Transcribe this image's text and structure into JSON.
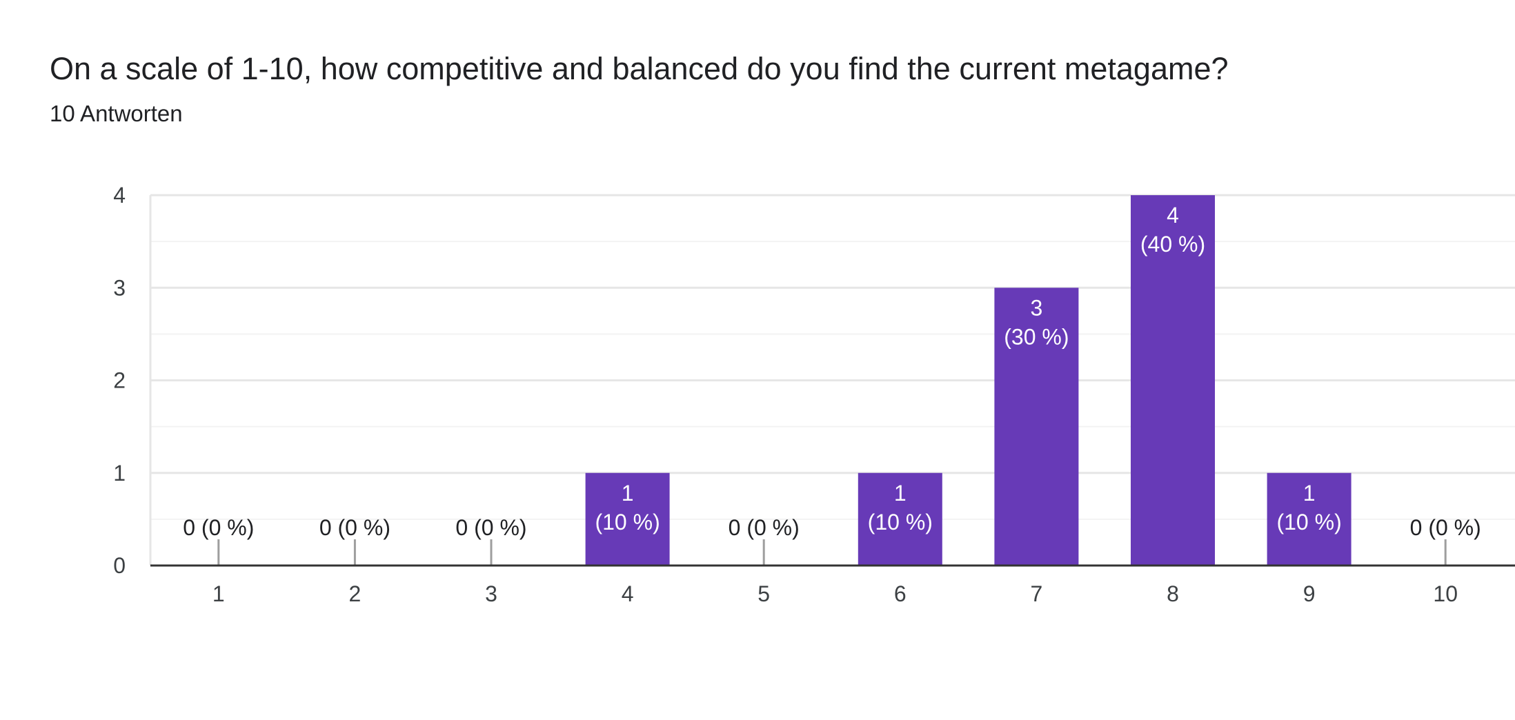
{
  "chart_data": {
    "type": "bar",
    "title": "On a scale of 1-10, how competitive and balanced do you find the current metagame?",
    "subtitle": "10 Antworten",
    "categories": [
      "1",
      "2",
      "3",
      "4",
      "5",
      "6",
      "7",
      "8",
      "9",
      "10"
    ],
    "values": [
      0,
      0,
      0,
      1,
      0,
      1,
      3,
      4,
      1,
      0
    ],
    "data_labels": [
      "0 (0 %)",
      "0 (0 %)",
      "0 (0 %)",
      "1\n(10 %)",
      "0 (0 %)",
      "1\n(10 %)",
      "3\n(30 %)",
      "4\n(40 %)",
      "1\n(10 %)",
      "0 (0 %)"
    ],
    "y_ticks": [
      0,
      1,
      2,
      3,
      4
    ],
    "ylim": [
      0,
      4
    ],
    "xlabel": "",
    "ylabel": "",
    "grid": true,
    "legend": "none",
    "bar_color": "#673ab7"
  }
}
